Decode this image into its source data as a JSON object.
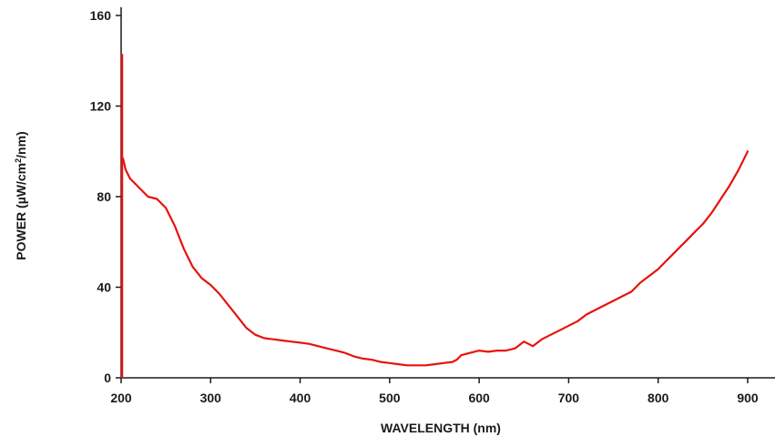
{
  "chart_data": {
    "type": "line",
    "title": "",
    "xlabel": "WAVELENGTH (nm)",
    "ylabel": {
      "pre": "POWER (µW/cm",
      "sup": "2",
      "post": "/nm)"
    },
    "xlim": [
      200,
      920
    ],
    "ylim": [
      0,
      165
    ],
    "xticks": [
      200,
      300,
      400,
      500,
      600,
      700,
      800,
      900
    ],
    "yticks": [
      0,
      40,
      80,
      120,
      160
    ],
    "grid": false,
    "legend": "none",
    "line_color": "#e8120c",
    "spike": {
      "x": 201,
      "y": [
        0,
        143
      ]
    },
    "series": [
      {
        "x": [
          202,
          205,
          210,
          220,
          230,
          240,
          250,
          260,
          270,
          280,
          290,
          300,
          310,
          320,
          330,
          340,
          350,
          360,
          370,
          380,
          390,
          400,
          410,
          420,
          430,
          440,
          450,
          460,
          470,
          480,
          490,
          500,
          510,
          520,
          530,
          540,
          550,
          560,
          570,
          575,
          580,
          590,
          600,
          610,
          620,
          630,
          640,
          650,
          655,
          660,
          670,
          680,
          690,
          700,
          710,
          720,
          730,
          740,
          750,
          760,
          770,
          780,
          790,
          800,
          810,
          820,
          830,
          840,
          850,
          860,
          870,
          880,
          890,
          900
        ],
        "y": [
          97,
          92,
          88,
          84,
          80,
          79,
          75,
          67,
          57,
          49,
          44,
          41,
          37,
          32,
          27,
          22,
          19,
          17.5,
          17,
          16.5,
          16,
          15.5,
          15,
          14,
          13,
          12,
          11,
          9.5,
          8.5,
          8,
          7,
          6.5,
          6,
          5.5,
          5.5,
          5.5,
          6,
          6.5,
          7,
          8,
          10,
          11,
          12,
          11.5,
          12,
          12,
          13,
          16,
          15,
          14,
          17,
          19,
          21,
          23,
          25,
          28,
          30,
          32,
          34,
          36,
          38,
          42,
          45,
          48,
          52,
          56,
          60,
          64,
          68,
          73,
          79,
          85,
          92,
          100
        ]
      }
    ]
  }
}
